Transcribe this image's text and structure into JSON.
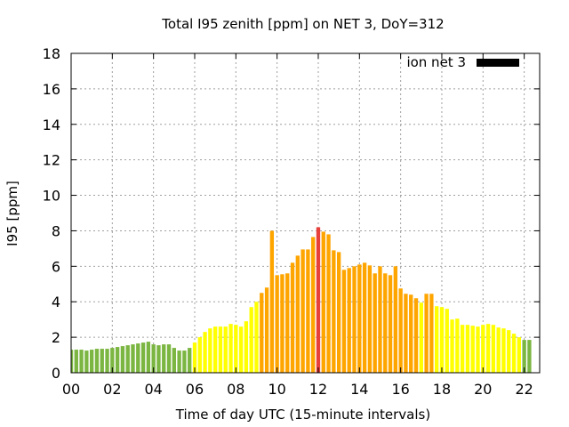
{
  "chart_data": {
    "type": "bar",
    "title": "Total I95 zenith [ppm] on NET 3, DoY=312",
    "xlabel": "Time of day UTC (15-minute intervals)",
    "ylabel": "I95 [ppm]",
    "ylim": [
      0,
      18
    ],
    "yticks": [
      "0",
      "2",
      "4",
      "6",
      "8",
      "10",
      "12",
      "14",
      "16",
      "18"
    ],
    "xlim": [
      0,
      22.75
    ],
    "xticks": [
      "00",
      "02",
      "04",
      "06",
      "08",
      "10",
      "12",
      "14",
      "16",
      "18",
      "20",
      "22"
    ],
    "interval_hours": 0.25,
    "grid": true,
    "legend": {
      "label": "ion net 3",
      "color": "#000000",
      "placement": "top-right"
    },
    "color_scale": {
      "green": "#7cb642",
      "yellow": "#ffff00",
      "orange": "#ffa500",
      "red": "#e8403a"
    },
    "values": [
      1.3,
      1.3,
      1.3,
      1.25,
      1.3,
      1.35,
      1.35,
      1.35,
      1.4,
      1.45,
      1.5,
      1.55,
      1.6,
      1.65,
      1.7,
      1.75,
      1.6,
      1.55,
      1.6,
      1.6,
      1.4,
      1.25,
      1.25,
      1.4,
      1.7,
      2.0,
      2.3,
      2.5,
      2.6,
      2.6,
      2.6,
      2.75,
      2.7,
      2.6,
      2.9,
      3.7,
      4.0,
      4.5,
      4.8,
      8.0,
      5.5,
      5.55,
      5.6,
      6.2,
      6.6,
      6.95,
      6.95,
      7.65,
      8.2,
      7.95,
      7.8,
      6.9,
      6.8,
      5.8,
      5.9,
      6.0,
      6.1,
      6.2,
      6.05,
      5.6,
      6.0,
      5.6,
      5.5,
      6.0,
      4.75,
      4.45,
      4.4,
      4.2,
      3.95,
      4.45,
      4.45,
      3.75,
      3.7,
      3.6,
      3.0,
      3.05,
      2.7,
      2.7,
      2.65,
      2.6,
      2.7,
      2.75,
      2.7,
      2.55,
      2.5,
      2.4,
      2.2,
      2.0,
      1.85,
      1.85
    ],
    "colors": [
      "green",
      "green",
      "green",
      "green",
      "green",
      "green",
      "green",
      "green",
      "green",
      "green",
      "green",
      "green",
      "green",
      "green",
      "green",
      "green",
      "green",
      "green",
      "green",
      "green",
      "green",
      "green",
      "green",
      "green",
      "yellow",
      "yellow",
      "yellow",
      "yellow",
      "yellow",
      "yellow",
      "yellow",
      "yellow",
      "yellow",
      "yellow",
      "yellow",
      "yellow",
      "yellow",
      "orange",
      "orange",
      "orange",
      "orange",
      "orange",
      "orange",
      "orange",
      "orange",
      "orange",
      "orange",
      "orange",
      "red",
      "orange",
      "orange",
      "orange",
      "orange",
      "orange",
      "orange",
      "orange",
      "orange",
      "orange",
      "orange",
      "orange",
      "orange",
      "orange",
      "orange",
      "orange",
      "orange",
      "orange",
      "orange",
      "orange",
      "yellow",
      "orange",
      "orange",
      "yellow",
      "yellow",
      "yellow",
      "yellow",
      "yellow",
      "yellow",
      "yellow",
      "yellow",
      "yellow",
      "yellow",
      "yellow",
      "yellow",
      "yellow",
      "yellow",
      "yellow",
      "yellow",
      "yellow",
      "green",
      "green"
    ]
  }
}
